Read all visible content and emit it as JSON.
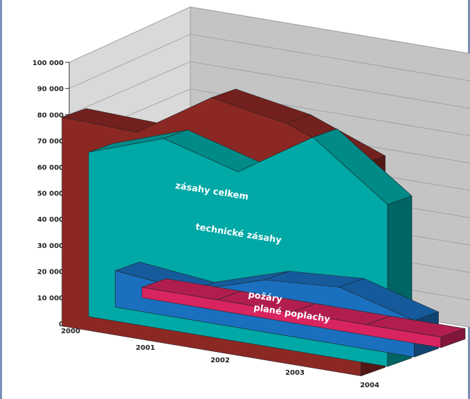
{
  "chart_data": {
    "type": "area",
    "subtype": "3d-stacked-depth",
    "title": "",
    "xlabel": "",
    "ylabel": "",
    "categories": [
      "2000",
      "2001",
      "2002",
      "2003",
      "2004"
    ],
    "ylim": [
      0,
      100000
    ],
    "y_ticks": [
      "0",
      "10 000",
      "20 000",
      "30 000",
      "40 000",
      "50 000",
      "60 000",
      "70 000",
      "80 000",
      "90 000",
      "100 000"
    ],
    "grid": true,
    "series": [
      {
        "name": "plané poplachy",
        "values": [
          4000,
          4000,
          4000,
          4000,
          4000
        ],
        "color": "#d8245f"
      },
      {
        "name": "požáry",
        "values": [
          14000,
          11000,
          20000,
          22000,
          14000
        ],
        "color": "#1a6fbe"
      },
      {
        "name": "technické zásahy",
        "values": [
          63000,
          73000,
          65000,
          83000,
          62000
        ],
        "color": "#00a8a6"
      },
      {
        "name": "zásahy celkem",
        "values": [
          80000,
          79000,
          97000,
          92000,
          81000
        ],
        "color": "#8b2824"
      }
    ]
  }
}
